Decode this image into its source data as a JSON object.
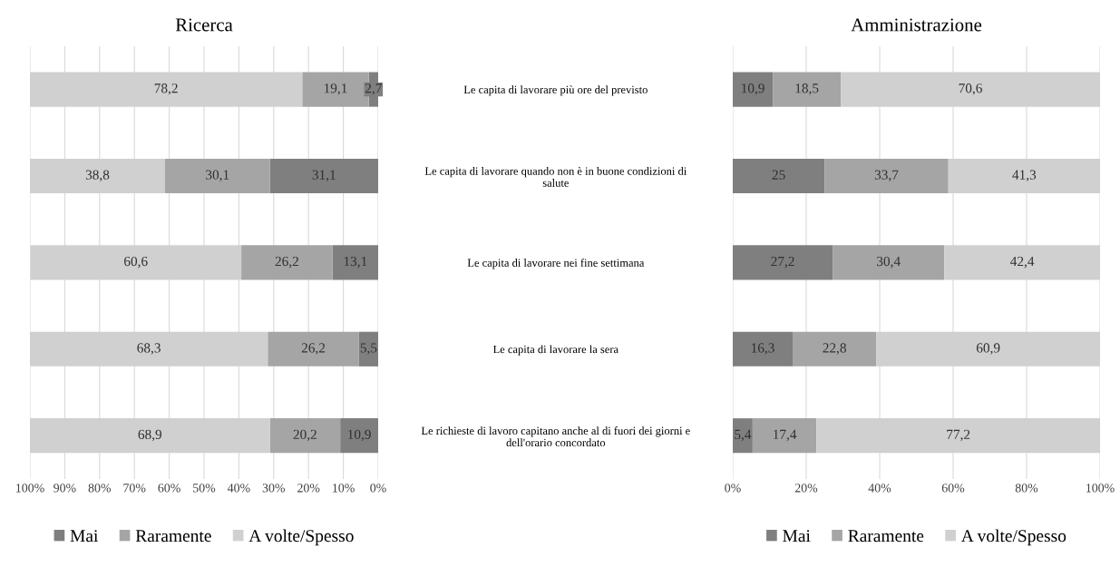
{
  "chart_data": [
    {
      "type": "bar",
      "orientation": "horizontal",
      "stacked": true,
      "title": "Ricerca",
      "categories": [
        "Le capita di lavorare più ore del previsto",
        "Le capita di lavorare quando non è in buone condizioni di\nsalute",
        "Le capita di lavorare nei fine settimana",
        "Le capita di lavorare la sera",
        "Le richieste di lavoro capitano anche al di fuori dei giorni e\ndell'orario concordato"
      ],
      "series": [
        {
          "name": "Mai",
          "color": "#7f7f7f",
          "values": [
            2.7,
            31.1,
            13.1,
            5.5,
            10.9
          ],
          "value_labels": [
            "2,7",
            "31,1",
            "13,1",
            "5,5",
            "10,9"
          ]
        },
        {
          "name": "Raramente",
          "color": "#a5a5a5",
          "values": [
            19.1,
            30.1,
            26.2,
            26.2,
            20.2
          ],
          "value_labels": [
            "19,1",
            "30,1",
            "26,2",
            "26,2",
            "20,2"
          ]
        },
        {
          "name": "A volte/Spesso",
          "color": "#d0d0d0",
          "values": [
            78.2,
            38.8,
            60.6,
            68.3,
            68.9
          ],
          "value_labels": [
            "78,2",
            "38,8",
            "60,6",
            "68,3",
            "68,9"
          ]
        }
      ],
      "xlim": [
        100,
        0
      ],
      "xticks": [
        {
          "value": 100,
          "label": "100%"
        },
        {
          "value": 90,
          "label": "90%"
        },
        {
          "value": 80,
          "label": "80%"
        },
        {
          "value": 70,
          "label": "70%"
        },
        {
          "value": 60,
          "label": "60%"
        },
        {
          "value": 50,
          "label": "50%"
        },
        {
          "value": 40,
          "label": "40%"
        },
        {
          "value": 30,
          "label": "30%"
        },
        {
          "value": 20,
          "label": "20%"
        },
        {
          "value": 10,
          "label": "10%"
        },
        {
          "value": 0,
          "label": "0%"
        }
      ],
      "grid": "x",
      "legend": "bottom"
    },
    {
      "type": "bar",
      "orientation": "horizontal",
      "stacked": true,
      "title": "Amministrazione",
      "categories": [
        null,
        null,
        null,
        null,
        null
      ],
      "series": [
        {
          "name": "Mai",
          "color": "#7f7f7f",
          "values": [
            10.9,
            25,
            27.2,
            16.3,
            5.4
          ],
          "value_labels": [
            "10,9",
            "25",
            "27,2",
            "16,3",
            "5,4"
          ]
        },
        {
          "name": "Raramente",
          "color": "#a5a5a5",
          "values": [
            18.5,
            33.7,
            30.4,
            22.8,
            17.4
          ],
          "value_labels": [
            "18,5",
            "33,7",
            "30,4",
            "22,8",
            "17,4"
          ]
        },
        {
          "name": "A volte/Spesso",
          "color": "#d0d0d0",
          "values": [
            70.6,
            41.3,
            42.4,
            60.9,
            77.2
          ],
          "value_labels": [
            "70,6",
            "41,3",
            "42,4",
            "60,9",
            "77,2"
          ]
        }
      ],
      "xlim": [
        0,
        100
      ],
      "xticks": [
        {
          "value": 0,
          "label": "0%"
        },
        {
          "value": 20,
          "label": "20%"
        },
        {
          "value": 40,
          "label": "40%"
        },
        {
          "value": 60,
          "label": "60%"
        },
        {
          "value": 80,
          "label": "80%"
        },
        {
          "value": 100,
          "label": "100%"
        }
      ],
      "grid": "x",
      "legend": "bottom",
      "tick_labels": "x"
    }
  ]
}
